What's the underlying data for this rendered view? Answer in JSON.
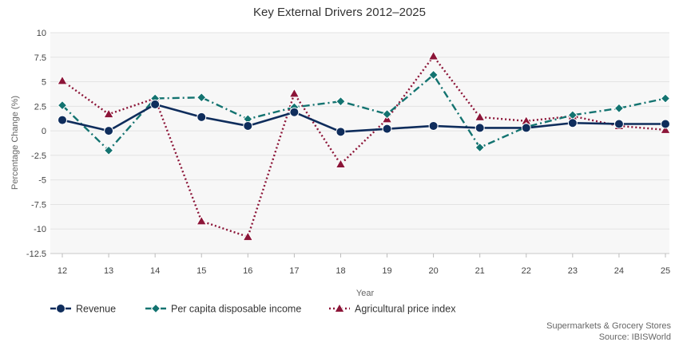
{
  "chart_data": {
    "type": "line",
    "title": "Key External Drivers 2012–2025",
    "xlabel": "Year",
    "ylabel": "Percentage Change (%)",
    "categories": [
      "12",
      "13",
      "14",
      "15",
      "16",
      "17",
      "18",
      "19",
      "20",
      "21",
      "22",
      "23",
      "24",
      "25"
    ],
    "ylim": [
      -12.5,
      10
    ],
    "yticks": [
      "10",
      "7.5",
      "5",
      "2.5",
      "0",
      "-2.5",
      "-5",
      "-7.5",
      "-10",
      "-12.5"
    ],
    "grid": true,
    "legend_position": "bottom-left",
    "series": [
      {
        "name": "Revenue",
        "color": "#0f2d5c",
        "line_style": "solid",
        "marker": "circle",
        "values": [
          1.1,
          0.0,
          2.7,
          1.4,
          0.5,
          1.9,
          -0.1,
          0.2,
          0.5,
          0.3,
          0.3,
          0.8,
          0.7,
          0.7
        ]
      },
      {
        "name": "Per capita disposable income",
        "color": "#137370",
        "line_style": "dash-dot",
        "marker": "diamond",
        "values": [
          2.6,
          -2.0,
          3.3,
          3.4,
          1.2,
          2.4,
          3.0,
          1.7,
          5.7,
          -1.7,
          0.4,
          1.6,
          2.3,
          3.3
        ]
      },
      {
        "name": "Agricultural price index",
        "color": "#8c1538",
        "line_style": "dotted",
        "marker": "triangle",
        "values": [
          5.1,
          1.7,
          3.3,
          -9.2,
          -10.8,
          3.8,
          -3.4,
          1.2,
          7.6,
          1.4,
          1.0,
          1.5,
          0.5,
          0.1
        ]
      }
    ],
    "footer": {
      "industry": "Supermarkets & Grocery Stores",
      "source": "Source: IBISWorld"
    }
  }
}
